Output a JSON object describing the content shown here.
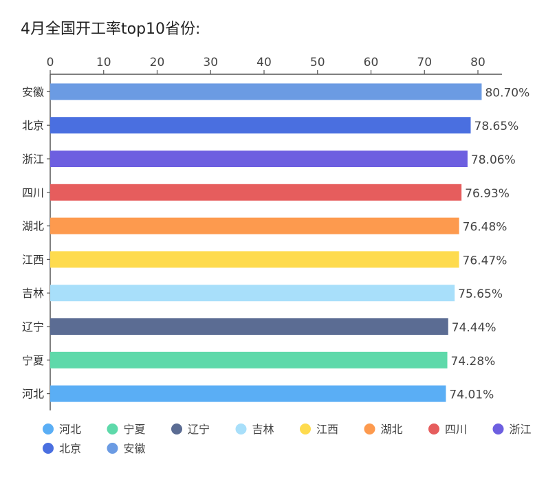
{
  "chart_data": {
    "type": "bar",
    "orientation": "horizontal",
    "title": "4月全国开工率top10省份:",
    "categories": [
      "安徽",
      "北京",
      "浙江",
      "四川",
      "湖北",
      "江西",
      "吉林",
      "辽宁",
      "宁夏",
      "河北"
    ],
    "values": [
      80.7,
      78.65,
      78.06,
      76.93,
      76.48,
      76.47,
      75.65,
      74.44,
      74.28,
      74.01
    ],
    "data_labels": [
      "80.70%",
      "78.65%",
      "78.06%",
      "76.93%",
      "76.48%",
      "76.47%",
      "75.65%",
      "74.44%",
      "74.28%",
      "74.01%"
    ],
    "colors": [
      "#6b9be3",
      "#4a6fe0",
      "#6d5fe0",
      "#e65d5d",
      "#fd9a4e",
      "#fedb4e",
      "#a8dffa",
      "#5b6c93",
      "#5ed9aa",
      "#5aaef5"
    ],
    "xaxis": {
      "position": "top",
      "ticks": [
        0,
        10,
        20,
        30,
        40,
        50,
        60,
        70,
        80
      ],
      "range": [
        0,
        84.5
      ]
    },
    "legend": {
      "position": "bottom",
      "items": [
        "河北",
        "宁夏",
        "辽宁",
        "吉林",
        "江西",
        "湖北",
        "四川",
        "浙江",
        "北京",
        "安徽"
      ]
    },
    "grid": false
  }
}
